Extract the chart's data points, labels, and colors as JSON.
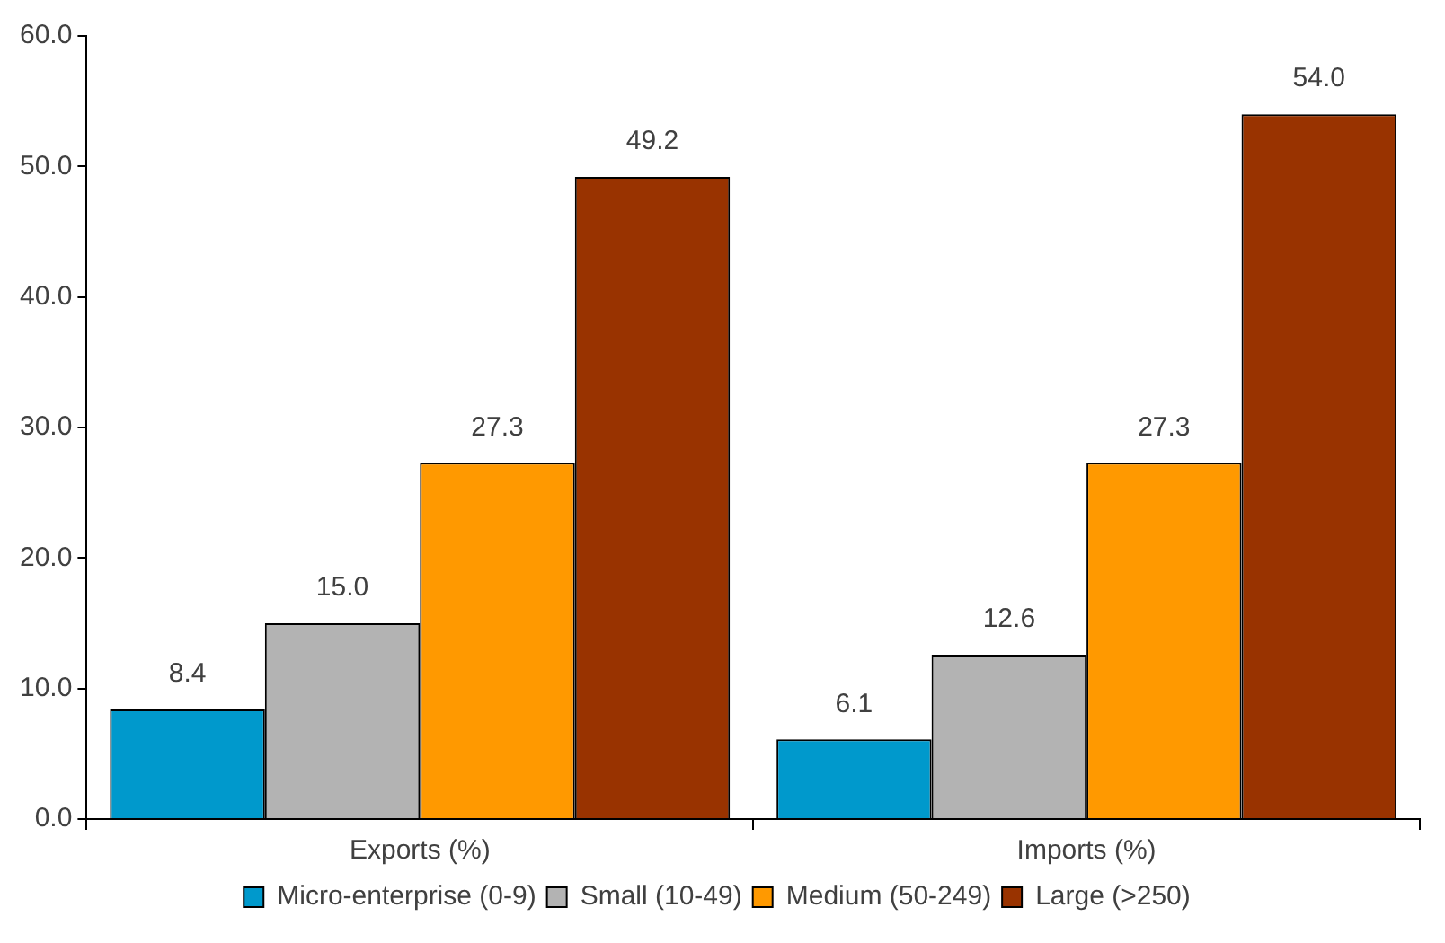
{
  "chart_data": {
    "type": "bar",
    "categories": [
      "Exports (%)",
      "Imports (%)"
    ],
    "series": [
      {
        "name": "Micro-enterprise (0-9)",
        "color": "#0099cc",
        "values": [
          8.4,
          6.1
        ],
        "value_labels": [
          "8.4",
          "6.1"
        ]
      },
      {
        "name": "Small (10-49)",
        "color": "#b3b3b3",
        "values": [
          15.0,
          12.6
        ],
        "value_labels": [
          "15.0",
          "12.6"
        ]
      },
      {
        "name": "Medium (50-249)",
        "color": "#ff9900",
        "values": [
          27.3,
          27.3
        ],
        "value_labels": [
          "27.3",
          "27.3"
        ]
      },
      {
        "name": "Large (>250)",
        "color": "#993300",
        "values": [
          49.2,
          54.0
        ],
        "value_labels": [
          "49.2",
          "54.0"
        ]
      }
    ],
    "ylim": [
      0,
      60
    ],
    "yticks": [
      {
        "value": 0,
        "label": "0.0"
      },
      {
        "value": 10,
        "label": "10.0"
      },
      {
        "value": 20,
        "label": "20.0"
      },
      {
        "value": 30,
        "label": "30.0"
      },
      {
        "value": 40,
        "label": "40.0"
      },
      {
        "value": 50,
        "label": "50.0"
      },
      {
        "value": 60,
        "label": "60.0"
      }
    ],
    "legend": "bottom"
  }
}
